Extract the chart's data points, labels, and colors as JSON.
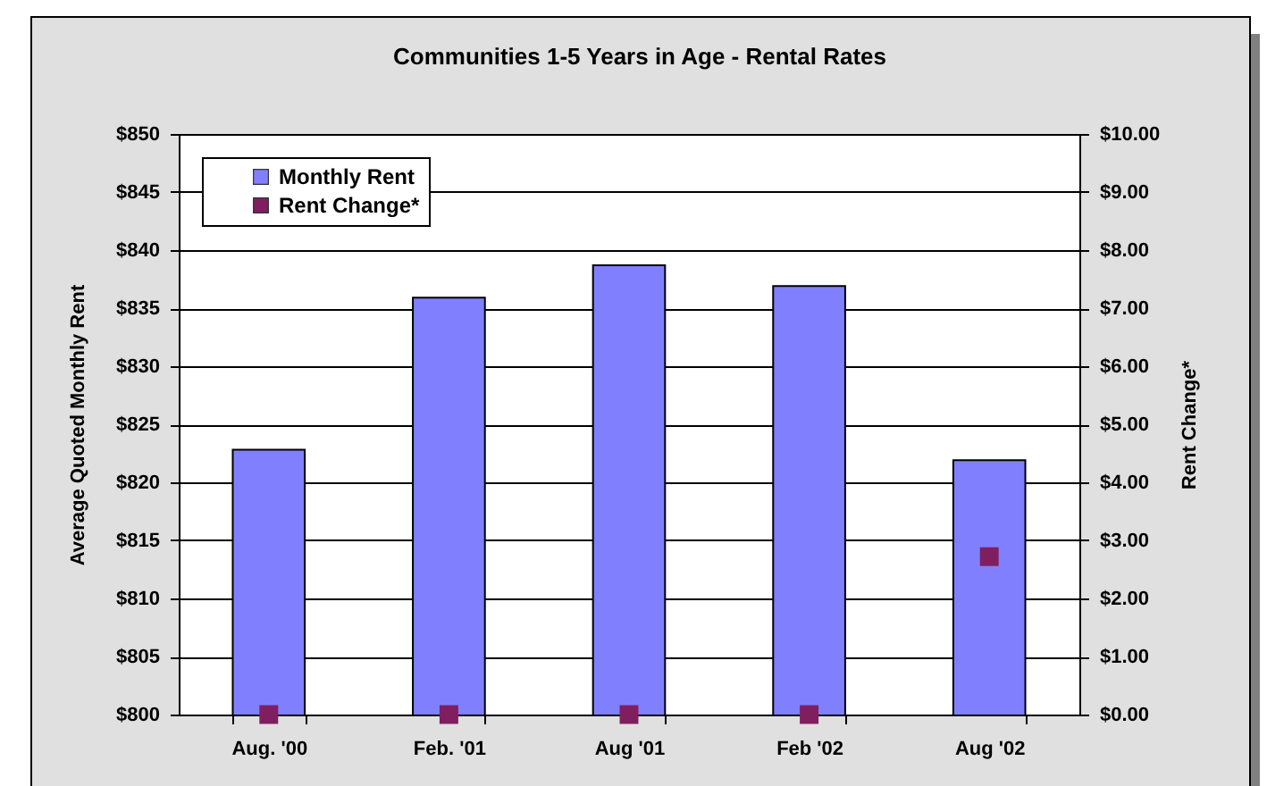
{
  "chart_data": {
    "type": "bar",
    "title": "Communities 1-5 Years in Age - Rental Rates",
    "ylabel": "Average Quoted Monthly Rent",
    "y2label": "Rent Change*",
    "categories": [
      "Aug. '00",
      "Feb. '01",
      "Aug '01",
      "Feb '02",
      "Aug '02"
    ],
    "series": [
      {
        "name": "Monthly Rent",
        "type": "bar",
        "color": "#8080ff",
        "values": [
          822.8,
          835.9,
          838.7,
          836.9,
          821.9
        ]
      },
      {
        "name": "Rent Change*",
        "type": "scatter",
        "axis": "y2",
        "color": "#7f1f5f",
        "values": [
          0,
          0,
          0,
          0,
          2.72
        ]
      }
    ],
    "ylim": [
      800,
      850
    ],
    "yticks": [
      {
        "value": 800,
        "label": "$800"
      },
      {
        "value": 805,
        "label": "$805"
      },
      {
        "value": 810,
        "label": "$810"
      },
      {
        "value": 815,
        "label": "$815"
      },
      {
        "value": 820,
        "label": "$820"
      },
      {
        "value": 825,
        "label": "$825"
      },
      {
        "value": 830,
        "label": "$830"
      },
      {
        "value": 835,
        "label": "$835"
      },
      {
        "value": 840,
        "label": "$840"
      },
      {
        "value": 845,
        "label": "$845"
      },
      {
        "value": 850,
        "label": "$850"
      }
    ],
    "y2lim": [
      0,
      10
    ],
    "y2ticks": [
      {
        "value": 0,
        "label": "$0.00"
      },
      {
        "value": 1,
        "label": "$1.00"
      },
      {
        "value": 2,
        "label": "$2.00"
      },
      {
        "value": 3,
        "label": "$3.00"
      },
      {
        "value": 4,
        "label": "$4.00"
      },
      {
        "value": 5,
        "label": "$5.00"
      },
      {
        "value": 6,
        "label": "$6.00"
      },
      {
        "value": 7,
        "label": "$7.00"
      },
      {
        "value": 8,
        "label": "$8.00"
      },
      {
        "value": 9,
        "label": "$9.00"
      },
      {
        "value": 10,
        "label": "$10.00"
      }
    ],
    "grid": "y",
    "legend": "top left",
    "marker": "square"
  }
}
